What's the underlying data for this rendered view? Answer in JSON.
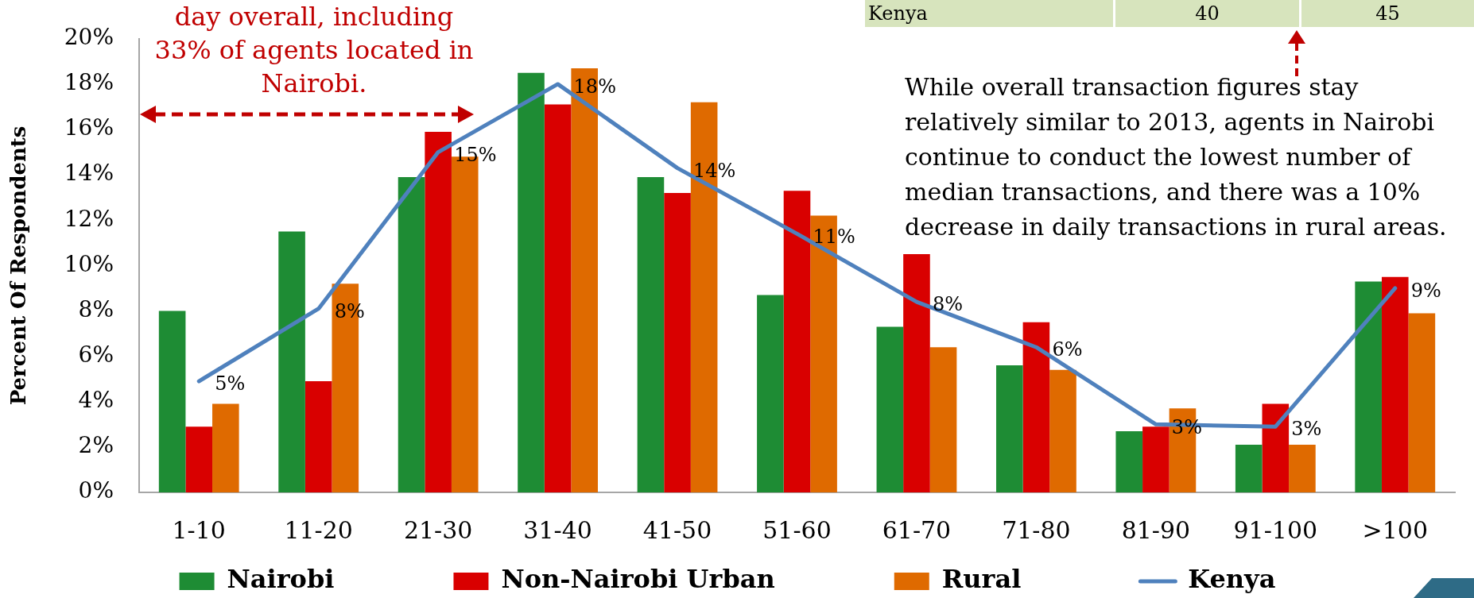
{
  "chart_data": {
    "type": "bar",
    "ylabel": "Percent Of Respondents",
    "categories": [
      "1-10",
      "11-20",
      "21-30",
      "31-40",
      "41-50",
      "51-60",
      "61-70",
      "71-80",
      "81-90",
      "91-100",
      ">100"
    ],
    "series": [
      {
        "name": "Nairobi",
        "color": "#1e8c34",
        "values": [
          8.0,
          11.5,
          13.9,
          18.5,
          13.9,
          8.7,
          7.3,
          5.6,
          2.7,
          2.1,
          9.3
        ]
      },
      {
        "name": "Non-Nairobi Urban",
        "color": "#d90000",
        "values": [
          2.9,
          4.9,
          15.9,
          17.1,
          13.2,
          13.3,
          10.5,
          7.5,
          2.9,
          3.9,
          9.5
        ]
      },
      {
        "name": "Rural",
        "color": "#df6a00",
        "values": [
          3.9,
          9.2,
          14.8,
          18.7,
          17.2,
          12.2,
          6.4,
          5.4,
          3.7,
          2.1,
          7.9
        ]
      },
      {
        "name": "Kenya",
        "type": "line",
        "color": "#4f81bd",
        "values": [
          4.9,
          8.1,
          15.0,
          18.0,
          14.3,
          11.4,
          8.4,
          6.4,
          3.0,
          2.9,
          9.0
        ],
        "value_labels": [
          "5%",
          "8%",
          "15%",
          "18%",
          "14%",
          "11%",
          "8%",
          "6%",
          "3%",
          "3%",
          "9%"
        ]
      }
    ],
    "ylim": [
      0,
      20
    ],
    "yticks": [
      {
        "value": 0,
        "label": "0%"
      },
      {
        "value": 2,
        "label": "2%"
      },
      {
        "value": 4,
        "label": "4%"
      },
      {
        "value": 6,
        "label": "6%"
      },
      {
        "value": 8,
        "label": "8%"
      },
      {
        "value": 10,
        "label": "10%"
      },
      {
        "value": 12,
        "label": "12%"
      },
      {
        "value": 14,
        "label": "14%"
      },
      {
        "value": 16,
        "label": "16%"
      },
      {
        "value": 18,
        "label": "18%"
      },
      {
        "value": 20,
        "label": "20%"
      }
    ],
    "legend": "bottom",
    "marker": "none",
    "line_style": "solid",
    "annotations": [
      "day overall, including 33% of agents located in Nairobi.",
      "While overall transaction figures stay relatively similar to 2013, agents in Nairobi continue to conduct the lowest number of median transactions, and there was a 10% decrease in daily transactions in rural areas.",
      "Kenya",
      "40",
      "45"
    ]
  }
}
